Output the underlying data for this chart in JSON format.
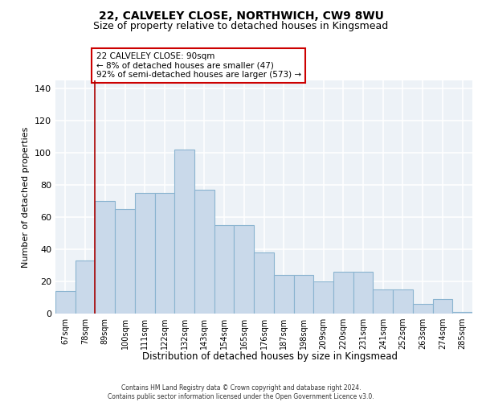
{
  "title1": "22, CALVELEY CLOSE, NORTHWICH, CW9 8WU",
  "title2": "Size of property relative to detached houses in Kingsmead",
  "xlabel": "Distribution of detached houses by size in Kingsmead",
  "ylabel": "Number of detached properties",
  "bar_labels": [
    "67sqm",
    "78sqm",
    "89sqm",
    "100sqm",
    "111sqm",
    "122sqm",
    "132sqm",
    "143sqm",
    "154sqm",
    "165sqm",
    "176sqm",
    "187sqm",
    "198sqm",
    "209sqm",
    "220sqm",
    "231sqm",
    "241sqm",
    "252sqm",
    "263sqm",
    "274sqm",
    "285sqm"
  ],
  "bar_heights": [
    14,
    33,
    70,
    65,
    75,
    75,
    102,
    77,
    55,
    55,
    38,
    24,
    24,
    20,
    26,
    26,
    15,
    15,
    6,
    9,
    1
  ],
  "bar_color": "#c9d9ea",
  "bar_edgecolor": "#8ab4d0",
  "bar_linewidth": 0.8,
  "vline_x_idx": 2,
  "vline_color": "#aa0000",
  "annotation_text": "22 CALVELEY CLOSE: 90sqm\n← 8% of detached houses are smaller (47)\n92% of semi-detached houses are larger (573) →",
  "ylim_max": 145,
  "yticks": [
    0,
    20,
    40,
    60,
    80,
    100,
    120,
    140
  ],
  "background_color": "#edf2f7",
  "grid_color": "#ffffff",
  "footer": "Contains HM Land Registry data © Crown copyright and database right 2024.\nContains public sector information licensed under the Open Government Licence v3.0."
}
